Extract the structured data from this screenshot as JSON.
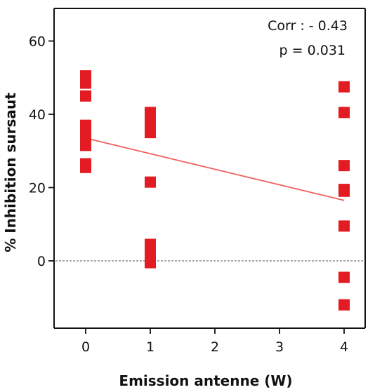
{
  "chart_data": {
    "type": "scatter",
    "xlabel": "Emission antenne (W)",
    "ylabel": "% Inhibition sursaut",
    "categories": [
      "0",
      "1",
      "2",
      "3",
      "4"
    ],
    "yticks": [
      "0",
      "20",
      "40",
      "60"
    ],
    "ylim": [
      -18,
      70
    ],
    "annotations": [
      "Corr : - 0.43",
      "p = 0.031"
    ],
    "grid": false,
    "zero_reference": "dotted",
    "colors": {
      "points": "#e31b23",
      "trend": "#f0625f",
      "axis": "#111111",
      "zero_line": "#8c8c8c"
    },
    "points": [
      {
        "x": "0",
        "y": 50.5
      },
      {
        "x": "0",
        "y": 48.5
      },
      {
        "x": "0",
        "y": 45
      },
      {
        "x": "0",
        "y": 37
      },
      {
        "x": "0",
        "y": 35
      },
      {
        "x": "0",
        "y": 33
      },
      {
        "x": "0",
        "y": 31.5
      },
      {
        "x": "0",
        "y": 26.5
      },
      {
        "x": "0",
        "y": 25.5
      },
      {
        "x": "1",
        "y": 40.5
      },
      {
        "x": "1",
        "y": 37.5
      },
      {
        "x": "1",
        "y": 35
      },
      {
        "x": "1",
        "y": 21.5
      },
      {
        "x": "1",
        "y": 4.5
      },
      {
        "x": "1",
        "y": 2
      },
      {
        "x": "1",
        "y": -0.5
      },
      {
        "x": "4",
        "y": 47.5
      },
      {
        "x": "4",
        "y": 40.5
      },
      {
        "x": "4",
        "y": 26
      },
      {
        "x": "4",
        "y": 19.5
      },
      {
        "x": "4",
        "y": 19
      },
      {
        "x": "4",
        "y": 9.5
      },
      {
        "x": "4",
        "y": -4.5
      },
      {
        "x": "4",
        "y": -12
      }
    ],
    "trend_line": [
      {
        "x": "0",
        "y": 33.5
      },
      {
        "x": "4",
        "y": 16.5
      }
    ]
  }
}
